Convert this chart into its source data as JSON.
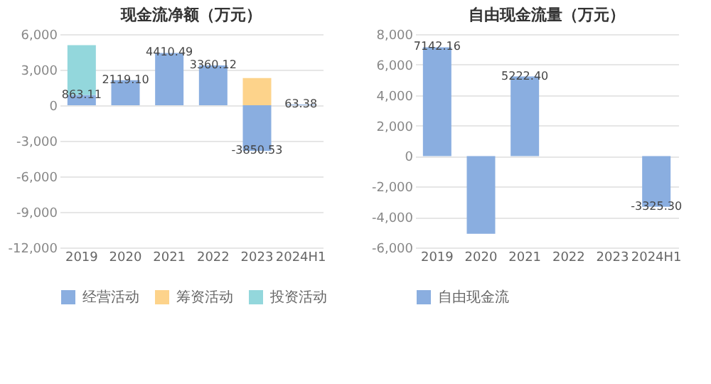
{
  "chart_data": [
    {
      "type": "bar",
      "title": "现金流净额（万元）",
      "categories": [
        "2019",
        "2020",
        "2021",
        "2022",
        "2023",
        "2024H1"
      ],
      "stacked": true,
      "ylim": [
        -12000,
        6000
      ],
      "yticks": [
        {
          "value": -12000,
          "label": "-12,000"
        },
        {
          "value": -9000,
          "label": "-9,000"
        },
        {
          "value": -6000,
          "label": "-6,000"
        },
        {
          "value": -3000,
          "label": "-3,000"
        },
        0,
        {
          "value": 3000,
          "label": "3,000"
        },
        {
          "value": 6000,
          "label": "6,000"
        }
      ],
      "grid": "y",
      "legend": "bottom",
      "series": [
        {
          "name": "经营活动",
          "color": "#8aaee0",
          "values": [
            863.11,
            2119.1,
            4410.49,
            3360.12,
            -3850.53,
            63.38
          ],
          "value_labels": [
            "863.11",
            "2119.10",
            "4410.49",
            "3360.12",
            "-3850.53",
            "63.38"
          ]
        },
        {
          "name": "筹资活动",
          "color": "#fdd38b",
          "values": [
            null,
            null,
            null,
            null,
            2300,
            null
          ]
        },
        {
          "name": "投资活动",
          "color": "#93d7dc",
          "values": [
            4200,
            null,
            null,
            null,
            null,
            null
          ]
        }
      ]
    },
    {
      "type": "bar",
      "title": "自由现金流量（万元）",
      "categories": [
        "2019",
        "2020",
        "2021",
        "2022",
        "2023",
        "2024H1"
      ],
      "ylim": [
        -6000,
        8000
      ],
      "yticks": [
        {
          "value": -6000,
          "label": "-6,000"
        },
        {
          "value": -4000,
          "label": "-4,000"
        },
        {
          "value": -2000,
          "label": "-2,000"
        },
        0,
        {
          "value": 2000,
          "label": "2,000"
        },
        {
          "value": 4000,
          "label": "4,000"
        },
        {
          "value": 6000,
          "label": "6,000"
        },
        {
          "value": 8000,
          "label": "8,000"
        }
      ],
      "grid": "y",
      "legend": "bottom",
      "series": [
        {
          "name": "自由现金流",
          "color": "#8aaee0",
          "values": [
            7142.16,
            -5100,
            5222.4,
            null,
            null,
            -3325.3
          ],
          "value_labels": [
            "7142.16",
            null,
            "5222.40",
            null,
            null,
            "-3325.30"
          ]
        }
      ]
    }
  ]
}
